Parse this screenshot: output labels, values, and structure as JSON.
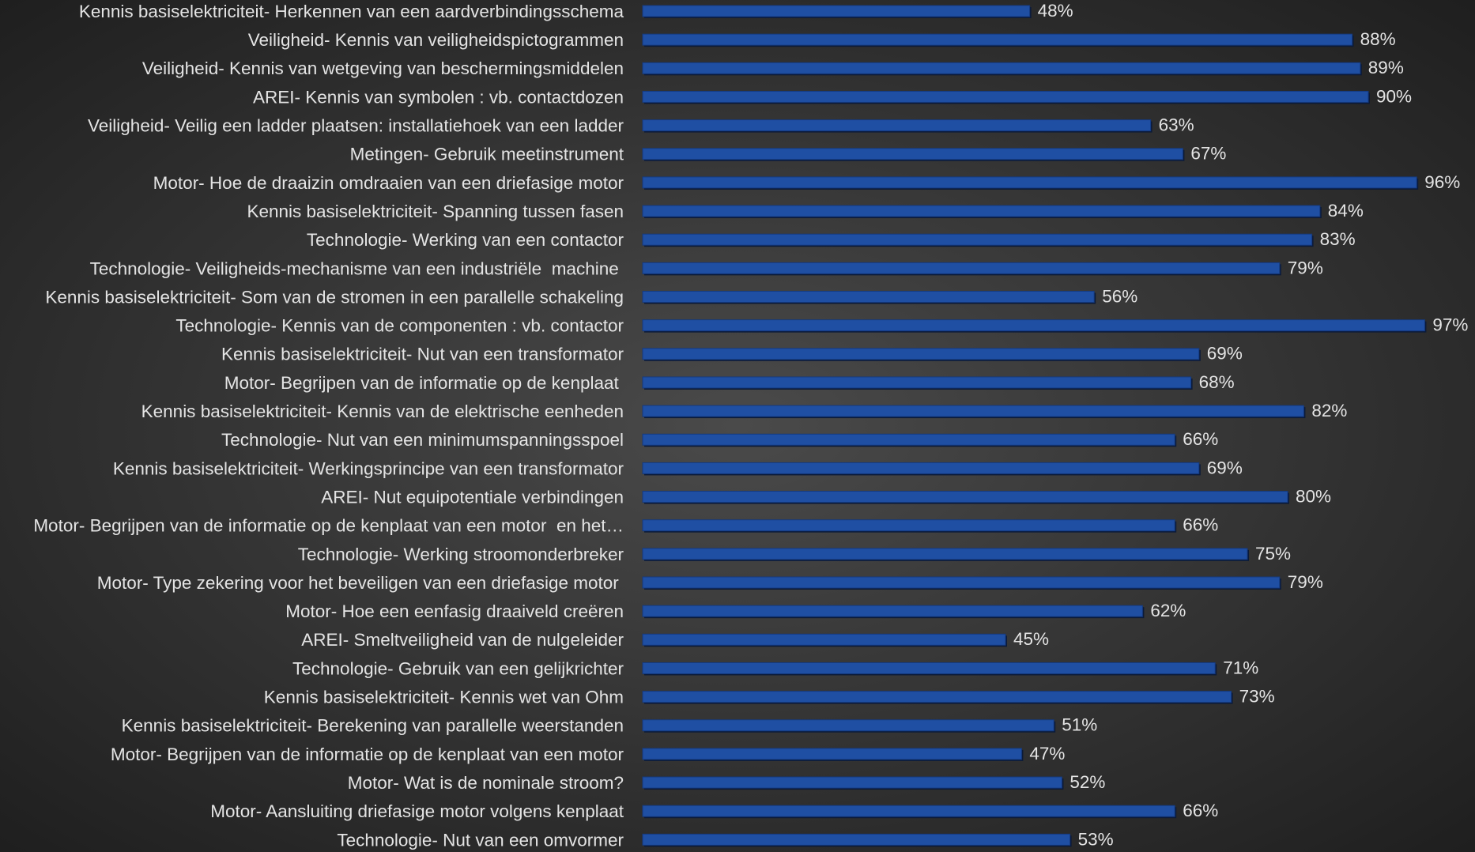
{
  "chart_data": {
    "type": "barh",
    "categories": [
      "Kennis basiselektriciteit- Herkennen van een aardverbindingsschema",
      "Veiligheid- Kennis van veiligheidspictogrammen",
      "Veiligheid- Kennis van wetgeving van beschermingsmiddelen",
      "AREI- Kennis van symbolen : vb. contactdozen",
      "Veiligheid- Veilig een ladder plaatsen: installatiehoek van een ladder",
      "Metingen- Gebruik meetinstrument",
      "Motor- Hoe de draaizin omdraaien van een driefasige motor",
      "Kennis basiselektriciteit- Spanning tussen fasen",
      "Technologie- Werking van een contactor",
      "Technologie- Veiligheids-mechanisme van een industriële  machine ",
      "Kennis basiselektriciteit- Som van de stromen in een parallelle schakeling",
      "Technologie- Kennis van de componenten : vb. contactor",
      "Kennis basiselektriciteit- Nut van een transformator",
      "Motor- Begrijpen van de informatie op de kenplaat ",
      "Kennis basiselektriciteit- Kennis van de elektrische eenheden",
      "Technologie- Nut van een minimumspanningsspoel",
      "Kennis basiselektriciteit- Werkingsprincipe van een transformator",
      "AREI- Nut equipotentiale verbindingen",
      "Motor- Begrijpen van de informatie op de kenplaat van een motor  en het…",
      "Technologie- Werking stroomonderbreker",
      "Motor- Type zekering voor het beveiligen van een driefasige motor ",
      "Motor- Hoe een eenfasig draaiveld creëren",
      "AREI- Smeltveiligheid van de nulgeleider",
      "Technologie- Gebruik van een gelijkrichter",
      "Kennis basiselektriciteit- Kennis wet van Ohm",
      "Kennis basiselektriciteit- Berekening van parallelle weerstanden",
      "Motor- Begrijpen van de informatie op de kenplaat van een motor",
      "Motor- Wat is de nominale stroom?",
      "Motor- Aansluiting driefasige motor volgens kenplaat",
      "Technologie- Nut van een omvormer"
    ],
    "values": [
      48,
      88,
      89,
      90,
      63,
      67,
      96,
      84,
      83,
      79,
      56,
      97,
      69,
      68,
      82,
      66,
      69,
      80,
      66,
      75,
      79,
      62,
      45,
      71,
      73,
      51,
      47,
      52,
      66,
      53
    ],
    "value_labels": [
      "48%",
      "88%",
      "89%",
      "90%",
      "63%",
      "67%",
      "96%",
      "84%",
      "83%",
      "79%",
      "56%",
      "97%",
      "69%",
      "68%",
      "82%",
      "66%",
      "69%",
      "80%",
      "66%",
      "75%",
      "79%",
      "62%",
      "45%",
      "71%",
      "73%",
      "51%",
      "47%",
      "52%",
      "66%",
      "53%"
    ],
    "color": "#1f4fa3",
    "xlim": [
      0,
      100
    ]
  }
}
